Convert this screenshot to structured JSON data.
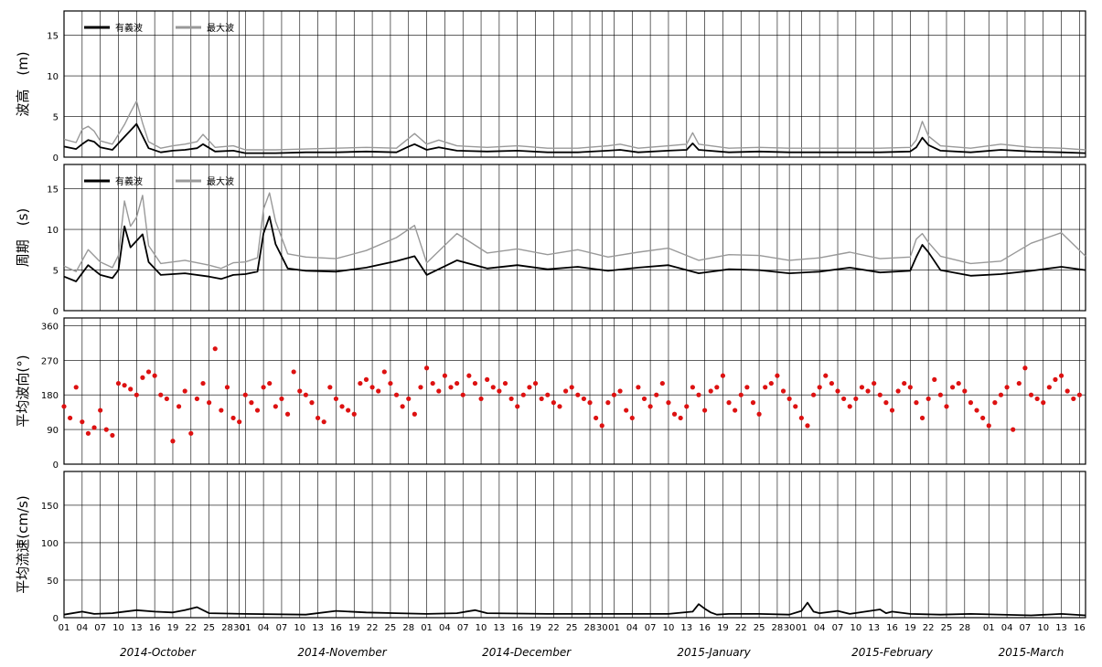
{
  "colors": {
    "significant": "#000000",
    "maximum": "#999999",
    "direction_points": "#dd1111",
    "current": "#000000",
    "grid": "#000000"
  },
  "x_axis": {
    "tick_labels": [
      "01",
      "04",
      "07",
      "10",
      "13",
      "16",
      "19",
      "22",
      "25",
      "28",
      "30",
      "01",
      "04",
      "07",
      "10",
      "13",
      "16",
      "19",
      "22",
      "25",
      "28",
      "01",
      "04",
      "07",
      "10",
      "13",
      "16",
      "19",
      "22",
      "25",
      "28",
      "30",
      "01",
      "04",
      "07",
      "10",
      "13",
      "16",
      "19",
      "22",
      "25",
      "28",
      "30",
      "01",
      "04",
      "07",
      "10",
      "13",
      "16",
      "19",
      "22",
      "25",
      "28",
      "01",
      "04",
      "07",
      "10",
      "13",
      "16"
    ],
    "tick_days": [
      0,
      3,
      6,
      9,
      12,
      15,
      18,
      21,
      24,
      27,
      29,
      30,
      33,
      36,
      39,
      42,
      45,
      48,
      51,
      54,
      57,
      60,
      63,
      66,
      69,
      72,
      75,
      78,
      81,
      84,
      87,
      89,
      91,
      94,
      97,
      100,
      103,
      106,
      109,
      112,
      115,
      118,
      120,
      122,
      125,
      128,
      131,
      134,
      137,
      140,
      143,
      146,
      149,
      153,
      156,
      159,
      162,
      165,
      168
    ],
    "month_labels": [
      "2014-October",
      "2014-November",
      "2014-December",
      "2015-January",
      "2015-February",
      "2015-March"
    ],
    "month_start_days": [
      0,
      31,
      61,
      92,
      123,
      151
    ],
    "range_days": [
      0,
      169
    ]
  },
  "chart_data": [
    {
      "id": "wave-height",
      "type": "line",
      "ylabel": "波高　(m)",
      "ylim": [
        0,
        18
      ],
      "yticks": [
        0,
        5,
        10,
        15
      ],
      "legend": {
        "position": "top-left",
        "entries": [
          "有義波",
          "最大波"
        ]
      },
      "grid": true,
      "series": [
        {
          "name": "有義波",
          "color": "#000000",
          "x": [
            0,
            2,
            3,
            4,
            5,
            6,
            8,
            10,
            11,
            12,
            13,
            14,
            16,
            18,
            20,
            22,
            23,
            25,
            28,
            30,
            35,
            40,
            45,
            50,
            55,
            57,
            58,
            60,
            62,
            65,
            70,
            75,
            80,
            85,
            90,
            92,
            95,
            100,
            103,
            104,
            105,
            110,
            115,
            120,
            125,
            130,
            135,
            140,
            141,
            142,
            143,
            145,
            150,
            155,
            160,
            165,
            169
          ],
          "y": [
            1.3,
            1.0,
            1.6,
            2.1,
            1.9,
            1.2,
            0.9,
            2.5,
            3.3,
            4.1,
            2.6,
            1.1,
            0.6,
            0.8,
            0.9,
            1.1,
            1.6,
            0.7,
            0.8,
            0.5,
            0.5,
            0.6,
            0.6,
            0.7,
            0.6,
            1.3,
            1.6,
            0.9,
            1.2,
            0.8,
            0.7,
            0.8,
            0.6,
            0.6,
            0.8,
            0.9,
            0.6,
            0.8,
            0.9,
            1.7,
            0.9,
            0.6,
            0.7,
            0.6,
            0.6,
            0.6,
            0.6,
            0.7,
            1.2,
            2.4,
            1.5,
            0.8,
            0.6,
            0.9,
            0.7,
            0.6,
            0.5
          ]
        },
        {
          "name": "最大波",
          "color": "#999999",
          "x": [
            0,
            2,
            3,
            4,
            5,
            6,
            8,
            10,
            11,
            12,
            13,
            14,
            16,
            18,
            20,
            22,
            23,
            25,
            28,
            30,
            35,
            40,
            45,
            50,
            55,
            57,
            58,
            60,
            62,
            65,
            70,
            75,
            80,
            85,
            90,
            92,
            95,
            100,
            103,
            104,
            105,
            110,
            115,
            120,
            125,
            130,
            135,
            140,
            141,
            142,
            143,
            145,
            150,
            155,
            160,
            165,
            169
          ],
          "y": [
            2.2,
            1.8,
            3.4,
            3.8,
            3.2,
            2.0,
            1.6,
            4.0,
            5.5,
            6.9,
            4.2,
            1.9,
            1.1,
            1.4,
            1.6,
            1.9,
            2.8,
            1.2,
            1.4,
            0.9,
            0.9,
            1.0,
            1.1,
            1.2,
            1.1,
            2.3,
            2.9,
            1.6,
            2.1,
            1.4,
            1.2,
            1.4,
            1.1,
            1.1,
            1.4,
            1.6,
            1.1,
            1.4,
            1.6,
            3.0,
            1.6,
            1.1,
            1.2,
            1.1,
            1.1,
            1.1,
            1.1,
            1.2,
            2.1,
            4.4,
            2.6,
            1.4,
            1.1,
            1.6,
            1.2,
            1.1,
            0.9
          ]
        }
      ]
    },
    {
      "id": "wave-period",
      "type": "line",
      "ylabel": "周期　(s)",
      "ylim": [
        0,
        18
      ],
      "yticks": [
        0,
        5,
        10,
        15
      ],
      "legend": {
        "position": "top-left",
        "entries": [
          "有義波",
          "最大波"
        ]
      },
      "grid": true,
      "series": [
        {
          "name": "有義波",
          "color": "#000000",
          "x": [
            0,
            2,
            4,
            6,
            8,
            9,
            10,
            11,
            12,
            13,
            14,
            16,
            20,
            24,
            26,
            28,
            30,
            32,
            33,
            34,
            35,
            37,
            40,
            45,
            50,
            55,
            58,
            60,
            65,
            70,
            75,
            80,
            85,
            90,
            95,
            100,
            105,
            110,
            115,
            120,
            125,
            130,
            135,
            140,
            141,
            142,
            143,
            145,
            150,
            155,
            160,
            165,
            169
          ],
          "y": [
            4.2,
            3.6,
            5.6,
            4.4,
            4.0,
            5.0,
            10.4,
            7.8,
            8.6,
            9.4,
            6.0,
            4.4,
            4.6,
            4.2,
            3.9,
            4.4,
            4.5,
            4.8,
            9.5,
            11.6,
            8.2,
            5.2,
            4.9,
            4.8,
            5.3,
            6.1,
            6.7,
            4.4,
            6.2,
            5.2,
            5.6,
            5.1,
            5.4,
            4.9,
            5.3,
            5.6,
            4.6,
            5.1,
            5.0,
            4.6,
            4.8,
            5.3,
            4.7,
            4.9,
            6.6,
            8.1,
            7.2,
            5.0,
            4.3,
            4.5,
            4.9,
            5.4,
            5.0
          ]
        },
        {
          "name": "最大波",
          "color": "#999999",
          "x": [
            0,
            2,
            4,
            6,
            8,
            9,
            10,
            11,
            12,
            13,
            14,
            16,
            20,
            24,
            26,
            28,
            30,
            32,
            33,
            34,
            35,
            37,
            40,
            45,
            50,
            55,
            58,
            60,
            65,
            70,
            75,
            80,
            85,
            90,
            95,
            100,
            105,
            110,
            115,
            120,
            125,
            130,
            135,
            140,
            141,
            142,
            143,
            145,
            150,
            155,
            160,
            165,
            169
          ],
          "y": [
            5.5,
            4.8,
            7.5,
            6.0,
            5.3,
            6.8,
            13.5,
            10.4,
            11.5,
            14.2,
            8.0,
            5.8,
            6.2,
            5.6,
            5.2,
            5.9,
            6.0,
            6.5,
            12.5,
            14.5,
            11.0,
            7.0,
            6.6,
            6.4,
            7.4,
            9.0,
            10.5,
            5.9,
            9.5,
            7.1,
            7.6,
            6.9,
            7.5,
            6.6,
            7.2,
            7.7,
            6.2,
            6.9,
            6.8,
            6.2,
            6.5,
            7.2,
            6.4,
            6.6,
            8.8,
            9.5,
            8.4,
            6.7,
            5.8,
            6.1,
            8.3,
            9.6,
            6.7
          ]
        }
      ]
    },
    {
      "id": "mean-wave-direction",
      "type": "scatter",
      "ylabel": "平均波向(°)",
      "ylim": [
        0,
        380
      ],
      "yticks": [
        0,
        90,
        180,
        270,
        360
      ],
      "grid": true,
      "series": [
        {
          "name": "",
          "color": "#dd1111",
          "x": [
            0,
            1,
            2,
            3,
            4,
            5,
            6,
            7,
            8,
            9,
            10,
            11,
            12,
            13,
            14,
            15,
            16,
            17,
            18,
            19,
            20,
            21,
            22,
            23,
            24,
            25,
            26,
            27,
            28,
            29,
            30,
            31,
            32,
            33,
            34,
            35,
            36,
            37,
            38,
            39,
            40,
            41,
            42,
            43,
            44,
            45,
            46,
            47,
            48,
            49,
            50,
            51,
            52,
            53,
            54,
            55,
            56,
            57,
            58,
            59,
            60,
            61,
            62,
            63,
            64,
            65,
            66,
            67,
            68,
            69,
            70,
            71,
            72,
            73,
            74,
            75,
            76,
            77,
            78,
            79,
            80,
            81,
            82,
            83,
            84,
            85,
            86,
            87,
            88,
            89,
            90,
            91,
            92,
            93,
            94,
            95,
            96,
            97,
            98,
            99,
            100,
            101,
            102,
            103,
            104,
            105,
            106,
            107,
            108,
            109,
            110,
            111,
            112,
            113,
            114,
            115,
            116,
            117,
            118,
            119,
            120,
            121,
            122,
            123,
            124,
            125,
            126,
            127,
            128,
            129,
            130,
            131,
            132,
            133,
            134,
            135,
            136,
            137,
            138,
            139,
            140,
            141,
            142,
            143,
            144,
            145,
            146,
            147,
            148,
            149,
            150,
            151,
            152,
            153,
            154,
            155,
            156,
            157,
            158,
            159,
            160,
            161,
            162,
            163,
            164,
            165,
            166,
            167,
            168
          ],
          "y": [
            150,
            120,
            200,
            110,
            80,
            95,
            140,
            90,
            75,
            210,
            205,
            195,
            180,
            225,
            240,
            230,
            180,
            170,
            60,
            150,
            190,
            80,
            170,
            210,
            160,
            300,
            140,
            200,
            120,
            110,
            180,
            160,
            140,
            200,
            210,
            150,
            170,
            130,
            240,
            190,
            180,
            160,
            120,
            110,
            200,
            170,
            150,
            140,
            130,
            210,
            220,
            200,
            190,
            240,
            210,
            180,
            150,
            170,
            130,
            200,
            250,
            210,
            190,
            230,
            200,
            210,
            180,
            230,
            210,
            170,
            220,
            200,
            190,
            210,
            170,
            150,
            180,
            200,
            210,
            170,
            180,
            160,
            150,
            190,
            200,
            180,
            170,
            160,
            120,
            100,
            160,
            180,
            190,
            140,
            120,
            200,
            170,
            150,
            180,
            210,
            160,
            130,
            120,
            150,
            200,
            180,
            140,
            190,
            200,
            230,
            160,
            140,
            180,
            200,
            160,
            130,
            200,
            210,
            230,
            190,
            170,
            150,
            120,
            100,
            180,
            200,
            230,
            210,
            190,
            170,
            150,
            170,
            200,
            190,
            210,
            180,
            160,
            140,
            190,
            210,
            200,
            160,
            120,
            170,
            220,
            180,
            150,
            200,
            210,
            190,
            160,
            140,
            120,
            100,
            160,
            180,
            200,
            90,
            210,
            250,
            180,
            170,
            160,
            200,
            220,
            230,
            190,
            170,
            180
          ]
        }
      ]
    },
    {
      "id": "mean-current-speed",
      "type": "line",
      "ylabel": "平均流速(cm/s)",
      "ylim": [
        0,
        195
      ],
      "yticks": [
        0,
        50,
        100,
        150
      ],
      "grid": true,
      "series": [
        {
          "name": "",
          "color": "#000000",
          "x": [
            0,
            3,
            5,
            8,
            12,
            15,
            18,
            20,
            22,
            24,
            30,
            40,
            45,
            50,
            55,
            60,
            65,
            68,
            70,
            80,
            90,
            100,
            104,
            105,
            106,
            107,
            108,
            110,
            115,
            120,
            122,
            123,
            124,
            125,
            128,
            130,
            135,
            136,
            137,
            140,
            145,
            150,
            160,
            165,
            169
          ],
          "y": [
            4,
            8,
            5,
            6,
            10,
            8,
            7,
            10,
            14,
            6,
            5,
            4,
            9,
            7,
            6,
            5,
            6,
            10,
            6,
            5,
            5,
            5,
            8,
            18,
            12,
            7,
            4,
            5,
            5,
            4,
            9,
            20,
            8,
            6,
            9,
            5,
            11,
            6,
            8,
            5,
            4,
            5,
            3,
            5,
            3
          ]
        }
      ]
    }
  ]
}
